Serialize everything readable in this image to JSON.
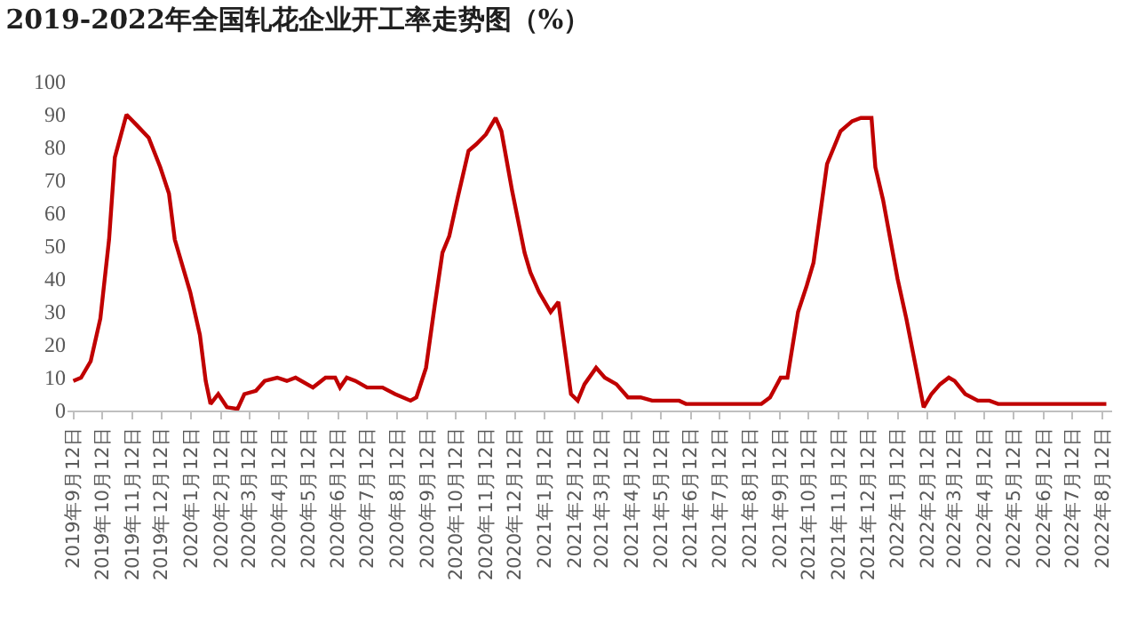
{
  "chart_data": {
    "type": "line",
    "title": "2019-2022年全国轧花企业开工率走势图（%）",
    "series": [
      {
        "color": "#c00000",
        "x": [
          "2019-09-12",
          "2019-09-20",
          "2019-09-30",
          "2019-10-10",
          "2019-10-19",
          "2019-10-25",
          "2019-11-06",
          "2019-11-16",
          "2019-11-29",
          "2019-12-11",
          "2019-12-20",
          "2019-12-26",
          "2020-01-11",
          "2020-01-21",
          "2020-01-27",
          "2020-02-01",
          "2020-02-09",
          "2020-02-18",
          "2020-02-29",
          "2020-03-07",
          "2020-03-19",
          "2020-03-28",
          "2020-04-10",
          "2020-04-20",
          "2020-04-29",
          "2020-05-17",
          "2020-05-30",
          "2020-06-09",
          "2020-06-14",
          "2020-06-21",
          "2020-06-30",
          "2020-07-12",
          "2020-07-28",
          "2020-08-10",
          "2020-08-26",
          "2020-09-01",
          "2020-09-11",
          "2020-09-20",
          "2020-09-28",
          "2020-10-05",
          "2020-10-14",
          "2020-10-25",
          "2020-11-02",
          "2020-11-12",
          "2020-11-22",
          "2020-11-28",
          "2020-12-09",
          "2020-12-22",
          "2020-12-28",
          "2021-01-06",
          "2021-01-18",
          "2021-01-26",
          "2021-02-08",
          "2021-02-15",
          "2021-02-22",
          "2021-03-06",
          "2021-03-15",
          "2021-03-27",
          "2021-04-08",
          "2021-04-21",
          "2021-05-03",
          "2021-05-31",
          "2021-06-07",
          "2021-08-12",
          "2021-08-24",
          "2021-09-02",
          "2021-09-13",
          "2021-09-20",
          "2021-10-01",
          "2021-10-10",
          "2021-10-17",
          "2021-10-31",
          "2021-11-14",
          "2021-11-26",
          "2021-12-05",
          "2021-12-16",
          "2021-12-20",
          "2021-12-28",
          "2022-01-12",
          "2022-01-21",
          "2022-01-31",
          "2022-02-08",
          "2022-02-16",
          "2022-02-25",
          "2022-03-06",
          "2022-03-12",
          "2022-03-23",
          "2022-04-05",
          "2022-04-17",
          "2022-04-26",
          "2022-08-16"
        ],
        "values": [
          9,
          10,
          15,
          28,
          52,
          77,
          90,
          87,
          83,
          74,
          66,
          52,
          36,
          23,
          9,
          2,
          5,
          1,
          0.5,
          5,
          6,
          9,
          10,
          9,
          10,
          7,
          10,
          10,
          7,
          10,
          9,
          7,
          7,
          5,
          3,
          4,
          13,
          32,
          48,
          53,
          65,
          79,
          81,
          84,
          89,
          85,
          67,
          48,
          42,
          36,
          30,
          33,
          5,
          3,
          8,
          13,
          10,
          8,
          4,
          4,
          3,
          3,
          2,
          2,
          2,
          4,
          10,
          10,
          30,
          38,
          45,
          75,
          85,
          88,
          89,
          89,
          74,
          64,
          40,
          28,
          13,
          1,
          5,
          8,
          10,
          9,
          5,
          3,
          3,
          2,
          2
        ]
      }
    ],
    "xlim": [
      "2019-09-06",
      "2022-08-22"
    ],
    "xticks": [
      {
        "value": "2019-09-12",
        "label": "2019年9月12日"
      },
      {
        "value": "2019-10-12",
        "label": "2019年10月12日"
      },
      {
        "value": "2019-11-12",
        "label": "2019年11月12日"
      },
      {
        "value": "2019-12-12",
        "label": "2019年12月12日"
      },
      {
        "value": "2020-01-12",
        "label": "2020年1月12日"
      },
      {
        "value": "2020-02-12",
        "label": "2020年2月12日"
      },
      {
        "value": "2020-03-12",
        "label": "2020年3月12日"
      },
      {
        "value": "2020-04-12",
        "label": "2020年4月12日"
      },
      {
        "value": "2020-05-12",
        "label": "2020年5月12日"
      },
      {
        "value": "2020-06-12",
        "label": "2020年6月12日"
      },
      {
        "value": "2020-07-12",
        "label": "2020年7月12日"
      },
      {
        "value": "2020-08-12",
        "label": "2020年8月12日"
      },
      {
        "value": "2020-09-12",
        "label": "2020年9月12日"
      },
      {
        "value": "2020-10-12",
        "label": "2020年10月12日"
      },
      {
        "value": "2020-11-12",
        "label": "2020年11月12日"
      },
      {
        "value": "2020-12-12",
        "label": "2020年12月12日"
      },
      {
        "value": "2021-01-12",
        "label": "2021年1月12日"
      },
      {
        "value": "2021-02-12",
        "label": "2021年2月12日"
      },
      {
        "value": "2021-03-12",
        "label": "2021年3月12日"
      },
      {
        "value": "2021-04-12",
        "label": "2021年4月12日"
      },
      {
        "value": "2021-05-12",
        "label": "2021年5月12日"
      },
      {
        "value": "2021-06-12",
        "label": "2021年6月12日"
      },
      {
        "value": "2021-07-12",
        "label": "2021年7月12日"
      },
      {
        "value": "2021-08-12",
        "label": "2021年8月12日"
      },
      {
        "value": "2021-09-12",
        "label": "2021年9月12日"
      },
      {
        "value": "2021-10-12",
        "label": "2021年10月12日"
      },
      {
        "value": "2021-11-12",
        "label": "2021年11月12日"
      },
      {
        "value": "2021-12-12",
        "label": "2021年12月12日"
      },
      {
        "value": "2022-01-12",
        "label": "2022年1月12日"
      },
      {
        "value": "2022-02-12",
        "label": "2022年2月12日"
      },
      {
        "value": "2022-03-12",
        "label": "2022年3月12日"
      },
      {
        "value": "2022-04-12",
        "label": "2022年4月12日"
      },
      {
        "value": "2022-05-12",
        "label": "2022年5月12日"
      },
      {
        "value": "2022-06-12",
        "label": "2022年6月12日"
      },
      {
        "value": "2022-07-12",
        "label": "2022年7月12日"
      },
      {
        "value": "2022-08-12",
        "label": "2022年8月12日"
      }
    ],
    "ylim": [
      0,
      100
    ],
    "yticks": [
      0,
      10,
      20,
      30,
      40,
      50,
      60,
      70,
      80,
      90,
      100
    ],
    "grid": false,
    "marker": "none",
    "line_style": "solid"
  }
}
